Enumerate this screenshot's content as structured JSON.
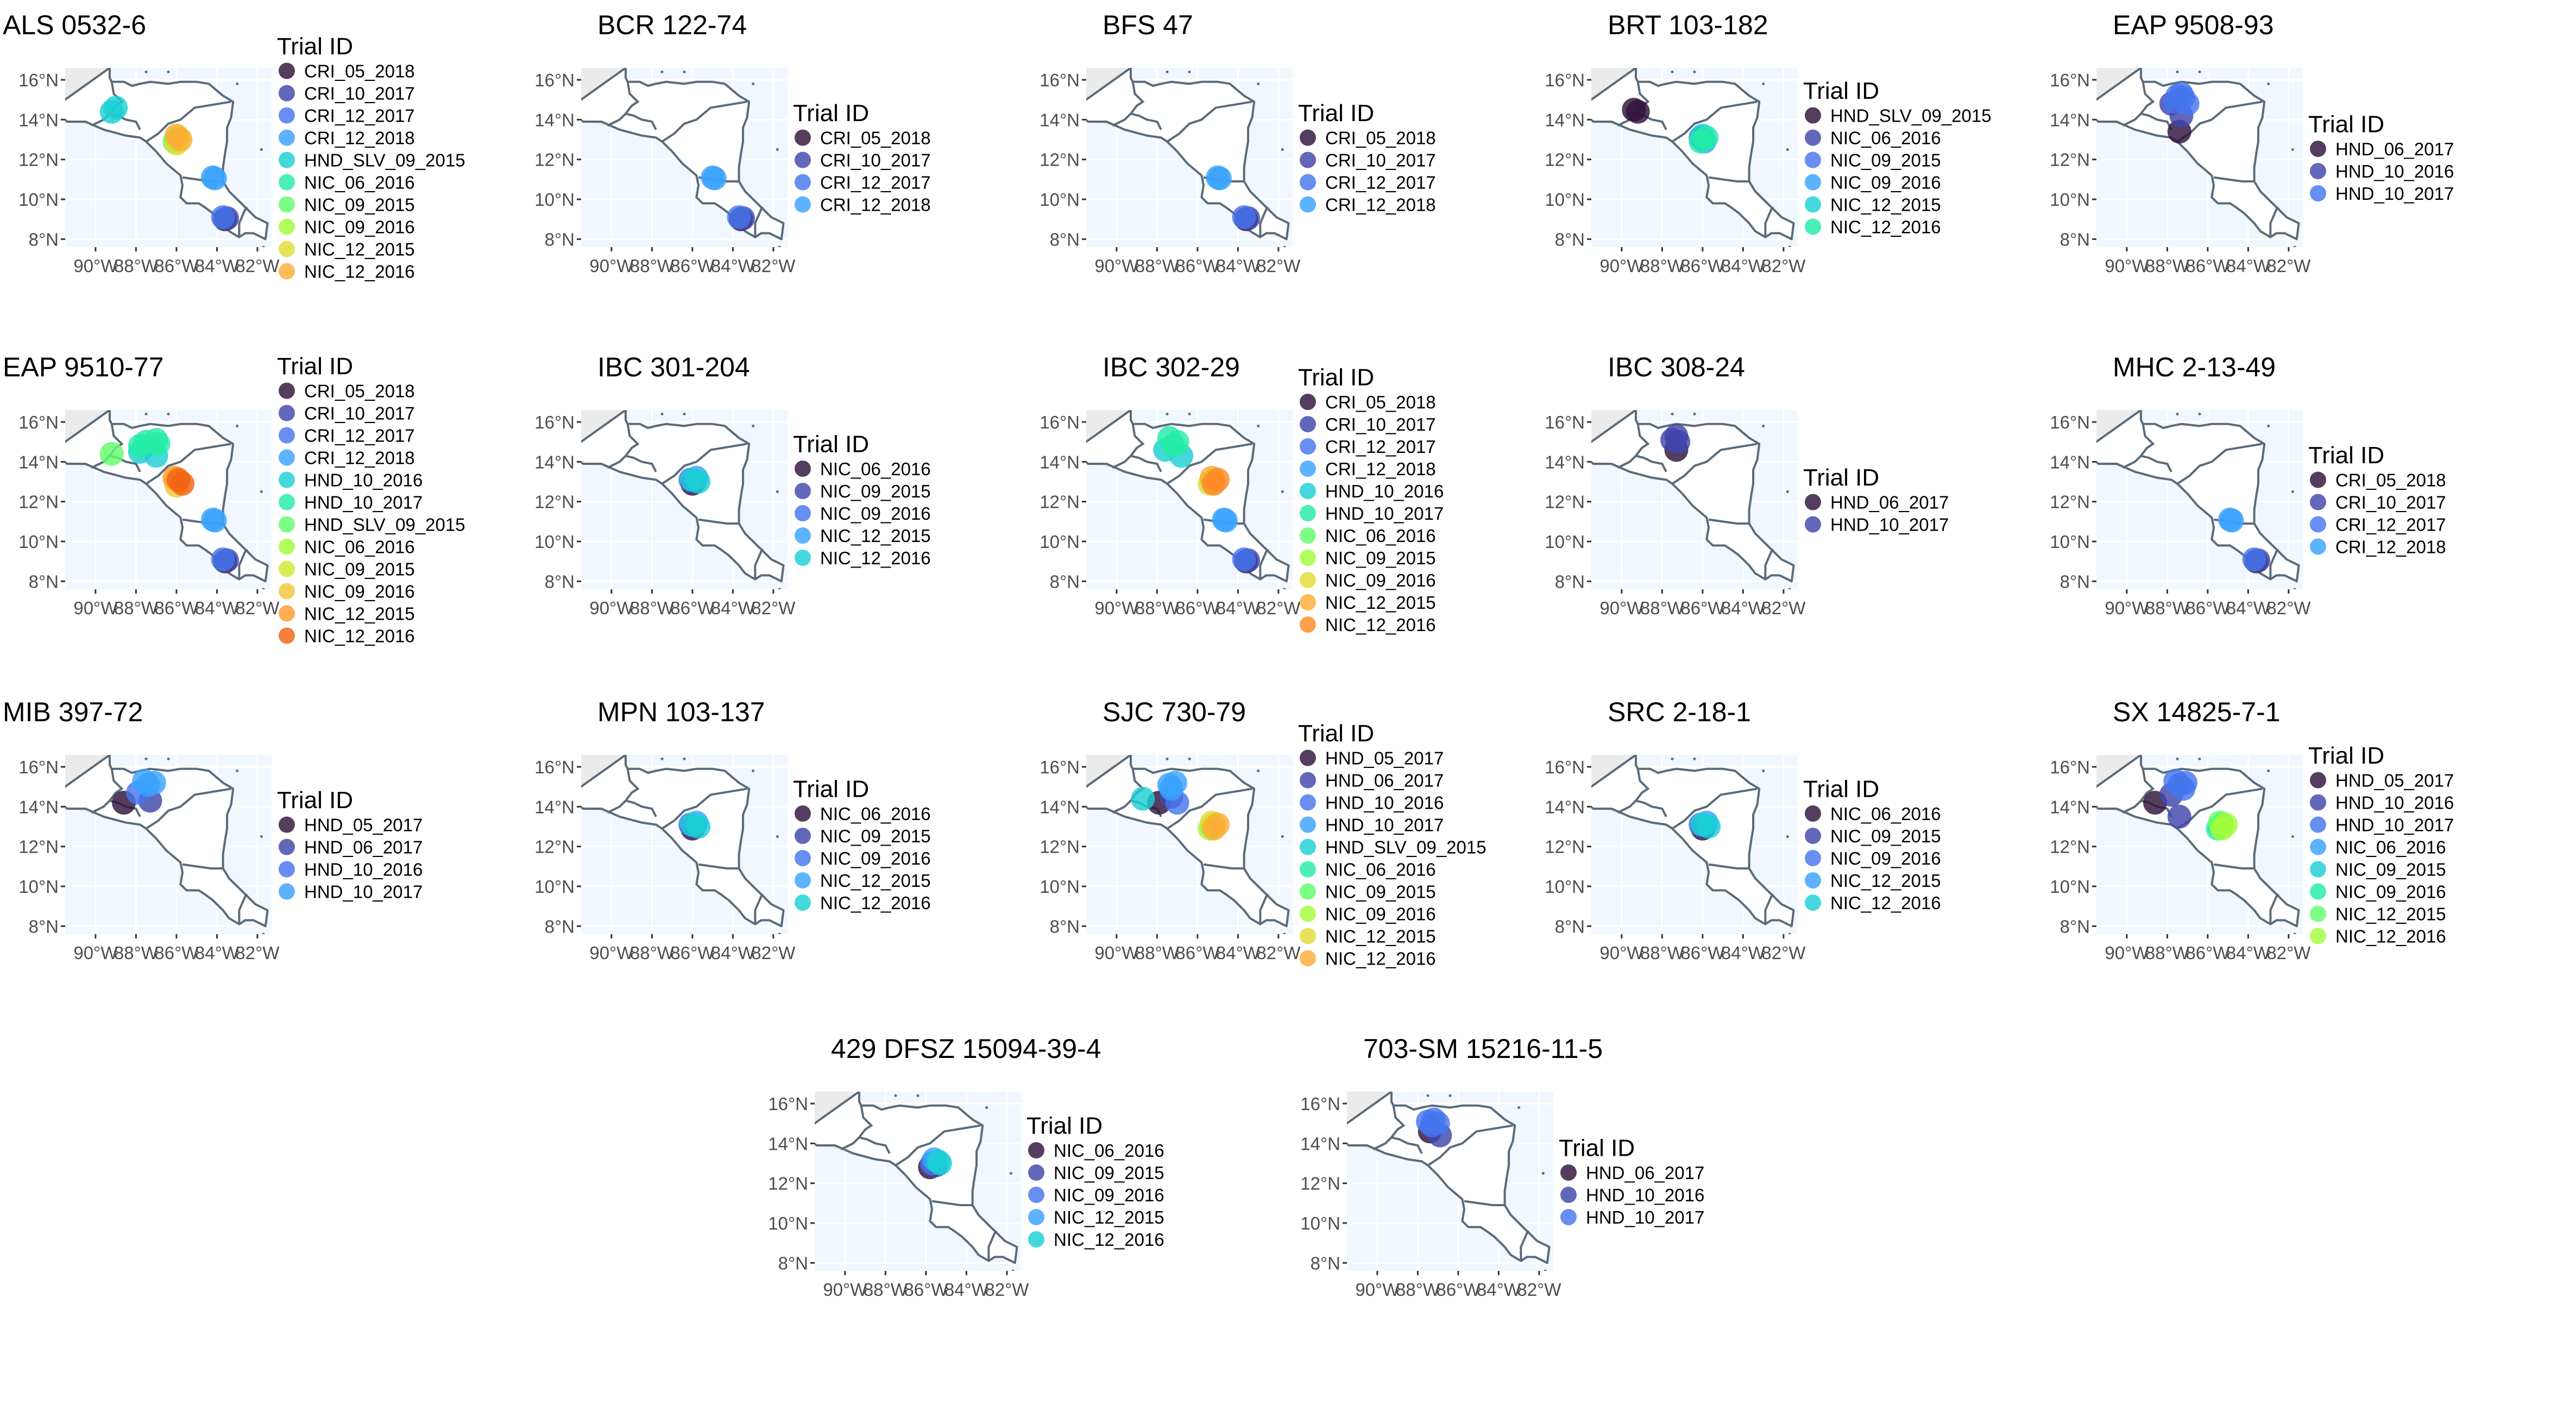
{
  "legend_title": "Trial ID",
  "axes": {
    "x_ticks": [
      "90°W",
      "88°W",
      "86°W",
      "84°W",
      "82°W"
    ],
    "y_ticks": [
      "16°N",
      "14°N",
      "12°N",
      "10°N",
      "8°N"
    ],
    "xlim": [
      -91.5,
      -81.3
    ],
    "ylim": [
      7.6,
      16.6
    ]
  },
  "colors": {
    "CRI_05_2018": "#30123b",
    "CRI_10_2017": "#4145ab",
    "CRI_12_2017": "#4675ed",
    "CRI_12_2018": "#39a2fc",
    "HND_05_2017": "#30123b",
    "HND_06_2017": "#4145ab",
    "HND_10_2016": "#4675ed",
    "HND_10_2017": "#39a2fc",
    "HND_SLV_09_2015": "#1bcfd4",
    "NIC_06_2016": "#24eca6",
    "NIC_09_2015": "#61fc6c",
    "NIC_09_2016": "#a4fc3b",
    "NIC_12_2015": "#d1e834",
    "NIC_12_2016": "#f3c63a"
  },
  "chart_data": [
    {
      "type": "scatter",
      "title": "ALS 0532-6",
      "legend": [
        "CRI_05_2018",
        "CRI_10_2017",
        "CRI_12_2017",
        "CRI_12_2018",
        "HND_SLV_09_2015",
        "NIC_06_2016",
        "NIC_09_2015",
        "NIC_09_2016",
        "NIC_12_2015",
        "NIC_12_2016"
      ],
      "colors": [
        "#30123b",
        "#4145ab",
        "#4675ed",
        "#39a2fc",
        "#1bcfd4",
        "#24eca6",
        "#61fc6c",
        "#a4fc3b",
        "#e1dd37",
        "#fdad35"
      ],
      "points": [
        {
          "s": 0,
          "lon": -83.6,
          "lat": 9.0
        },
        {
          "s": 1,
          "lon": -83.5,
          "lat": 9.05
        },
        {
          "s": 2,
          "lon": -83.7,
          "lat": 9.1
        },
        {
          "s": 3,
          "lon": -84.2,
          "lat": 11.1
        },
        {
          "s": 3,
          "lon": -84.1,
          "lat": 11.05
        },
        {
          "s": 4,
          "lon": -89.2,
          "lat": 14.4
        },
        {
          "s": 4,
          "lon": -89.0,
          "lat": 14.6
        },
        {
          "s": 5,
          "lon": -86.0,
          "lat": 13.0
        },
        {
          "s": 6,
          "lon": -86.1,
          "lat": 12.9
        },
        {
          "s": 7,
          "lon": -85.9,
          "lat": 13.1
        },
        {
          "s": 8,
          "lon": -86.0,
          "lat": 12.8
        },
        {
          "s": 9,
          "lon": -86.0,
          "lat": 13.2
        },
        {
          "s": 9,
          "lon": -85.8,
          "lat": 13.0
        }
      ]
    },
    {
      "type": "scatter",
      "title": "BCR 122-74",
      "legend": [
        "CRI_05_2018",
        "CRI_10_2017",
        "CRI_12_2017",
        "CRI_12_2018"
      ],
      "colors": [
        "#30123b",
        "#4145ab",
        "#4675ed",
        "#39a2fc"
      ],
      "points": [
        {
          "s": 0,
          "lon": -83.6,
          "lat": 9.0
        },
        {
          "s": 1,
          "lon": -83.5,
          "lat": 9.05
        },
        {
          "s": 2,
          "lon": -83.7,
          "lat": 9.1
        },
        {
          "s": 3,
          "lon": -85.0,
          "lat": 11.1
        },
        {
          "s": 3,
          "lon": -84.9,
          "lat": 11.05
        }
      ]
    },
    {
      "type": "scatter",
      "title": "BFS 47",
      "legend": [
        "CRI_05_2018",
        "CRI_10_2017",
        "CRI_12_2017",
        "CRI_12_2018"
      ],
      "colors": [
        "#30123b",
        "#4145ab",
        "#4675ed",
        "#39a2fc"
      ],
      "points": [
        {
          "s": 0,
          "lon": -83.6,
          "lat": 9.0
        },
        {
          "s": 1,
          "lon": -83.5,
          "lat": 9.05
        },
        {
          "s": 2,
          "lon": -83.7,
          "lat": 9.1
        },
        {
          "s": 3,
          "lon": -85.0,
          "lat": 11.1
        },
        {
          "s": 3,
          "lon": -84.9,
          "lat": 11.05
        }
      ]
    },
    {
      "type": "scatter",
      "title": "BRT 103-182",
      "legend": [
        "HND_SLV_09_2015",
        "NIC_06_2016",
        "NIC_09_2015",
        "NIC_09_2016",
        "NIC_12_2015",
        "NIC_12_2016"
      ],
      "colors": [
        "#30123b",
        "#4145ab",
        "#4675ed",
        "#39a2fc",
        "#1bcfd4",
        "#24eca6"
      ],
      "points": [
        {
          "s": 0,
          "lon": -89.4,
          "lat": 14.5
        },
        {
          "s": 0,
          "lon": -89.2,
          "lat": 14.4
        },
        {
          "s": 1,
          "lon": -86.0,
          "lat": 13.0
        },
        {
          "s": 2,
          "lon": -86.1,
          "lat": 13.1
        },
        {
          "s": 3,
          "lon": -85.9,
          "lat": 12.9
        },
        {
          "s": 4,
          "lon": -86.0,
          "lat": 13.2
        },
        {
          "s": 5,
          "lon": -86.1,
          "lat": 12.9
        },
        {
          "s": 5,
          "lon": -85.8,
          "lat": 13.1
        }
      ]
    },
    {
      "type": "scatter",
      "title": "EAP 9508-93",
      "legend": [
        "HND_06_2017",
        "HND_10_2016",
        "HND_10_2017"
      ],
      "colors": [
        "#30123b",
        "#4145ab",
        "#4675ed"
      ],
      "points": [
        {
          "s": 0,
          "lon": -87.4,
          "lat": 13.4
        },
        {
          "s": 1,
          "lon": -87.8,
          "lat": 14.8
        },
        {
          "s": 1,
          "lon": -87.3,
          "lat": 14.2
        },
        {
          "s": 2,
          "lon": -87.5,
          "lat": 15.2
        },
        {
          "s": 2,
          "lon": -87.2,
          "lat": 15.1
        },
        {
          "s": 2,
          "lon": -87.6,
          "lat": 14.9
        },
        {
          "s": 2,
          "lon": -87.0,
          "lat": 14.8
        },
        {
          "s": 2,
          "lon": -87.3,
          "lat": 15.3
        }
      ]
    },
    {
      "type": "scatter",
      "title": "EAP 9510-77",
      "legend": [
        "CRI_05_2018",
        "CRI_10_2017",
        "CRI_12_2017",
        "CRI_12_2018",
        "HND_10_2016",
        "HND_10_2017",
        "HND_SLV_09_2015",
        "NIC_06_2016",
        "NIC_09_2015",
        "NIC_09_2016",
        "NIC_12_2015",
        "NIC_12_2016"
      ],
      "colors": [
        "#30123b",
        "#4145ab",
        "#4675ed",
        "#39a2fc",
        "#1bcfd4",
        "#24eca6",
        "#61fc6c",
        "#a4fc3b",
        "#d1e834",
        "#f3c63a",
        "#fe9b2d",
        "#f36315"
      ],
      "points": [
        {
          "s": 0,
          "lon": -83.6,
          "lat": 9.0
        },
        {
          "s": 1,
          "lon": -83.5,
          "lat": 9.05
        },
        {
          "s": 2,
          "lon": -83.7,
          "lat": 9.1
        },
        {
          "s": 3,
          "lon": -84.2,
          "lat": 11.1
        },
        {
          "s": 3,
          "lon": -84.1,
          "lat": 11.05
        },
        {
          "s": 4,
          "lon": -87.8,
          "lat": 14.5
        },
        {
          "s": 4,
          "lon": -87.0,
          "lat": 14.3
        },
        {
          "s": 5,
          "lon": -87.5,
          "lat": 15.0
        },
        {
          "s": 5,
          "lon": -87.0,
          "lat": 15.1
        },
        {
          "s": 5,
          "lon": -87.8,
          "lat": 14.8
        },
        {
          "s": 5,
          "lon": -86.9,
          "lat": 14.9
        },
        {
          "s": 6,
          "lon": -89.2,
          "lat": 14.4
        },
        {
          "s": 7,
          "lon": -86.0,
          "lat": 13.1
        },
        {
          "s": 8,
          "lon": -85.9,
          "lat": 13.0
        },
        {
          "s": 9,
          "lon": -86.0,
          "lat": 12.8
        },
        {
          "s": 10,
          "lon": -86.1,
          "lat": 13.2
        },
        {
          "s": 11,
          "lon": -85.9,
          "lat": 13.1
        },
        {
          "s": 11,
          "lon": -85.7,
          "lat": 12.9
        }
      ]
    },
    {
      "type": "scatter",
      "title": "IBC 301-204",
      "legend": [
        "NIC_06_2016",
        "NIC_09_2015",
        "NIC_09_2016",
        "NIC_12_2015",
        "NIC_12_2016"
      ],
      "colors": [
        "#30123b",
        "#4145ab",
        "#4675ed",
        "#39a2fc",
        "#1bcfd4"
      ],
      "points": [
        {
          "s": 0,
          "lon": -86.0,
          "lat": 12.9
        },
        {
          "s": 1,
          "lon": -85.9,
          "lat": 13.0
        },
        {
          "s": 2,
          "lon": -86.1,
          "lat": 13.1
        },
        {
          "s": 3,
          "lon": -85.8,
          "lat": 13.2
        },
        {
          "s": 4,
          "lon": -86.0,
          "lat": 13.1
        },
        {
          "s": 4,
          "lon": -85.7,
          "lat": 13.0
        }
      ]
    },
    {
      "type": "scatter",
      "title": "IBC 302-29",
      "legend": [
        "CRI_05_2018",
        "CRI_10_2017",
        "CRI_12_2017",
        "CRI_12_2018",
        "HND_10_2016",
        "HND_10_2017",
        "NIC_06_2016",
        "NIC_09_2015",
        "NIC_09_2016",
        "NIC_12_2015",
        "NIC_12_2016"
      ],
      "colors": [
        "#30123b",
        "#4145ab",
        "#4675ed",
        "#39a2fc",
        "#1bcfd4",
        "#24eca6",
        "#61fc6c",
        "#a4fc3b",
        "#e1dd37",
        "#fdad35",
        "#fe8a27"
      ],
      "points": [
        {
          "s": 0,
          "lon": -83.6,
          "lat": 9.0
        },
        {
          "s": 1,
          "lon": -83.5,
          "lat": 9.05
        },
        {
          "s": 2,
          "lon": -83.7,
          "lat": 9.1
        },
        {
          "s": 3,
          "lon": -84.7,
          "lat": 11.1
        },
        {
          "s": 3,
          "lon": -84.6,
          "lat": 11.05
        },
        {
          "s": 4,
          "lon": -87.6,
          "lat": 14.6
        },
        {
          "s": 4,
          "lon": -86.8,
          "lat": 14.3
        },
        {
          "s": 5,
          "lon": -87.4,
          "lat": 15.2
        },
        {
          "s": 5,
          "lon": -87.0,
          "lat": 15.0
        },
        {
          "s": 5,
          "lon": -87.2,
          "lat": 14.8
        },
        {
          "s": 6,
          "lon": -85.3,
          "lat": 13.0
        },
        {
          "s": 7,
          "lon": -85.2,
          "lat": 13.1
        },
        {
          "s": 8,
          "lon": -85.4,
          "lat": 12.9
        },
        {
          "s": 9,
          "lon": -85.3,
          "lat": 13.2
        },
        {
          "s": 10,
          "lon": -85.2,
          "lat": 12.9
        },
        {
          "s": 10,
          "lon": -85.0,
          "lat": 13.1
        }
      ]
    },
    {
      "type": "scatter",
      "title": "IBC 308-24",
      "legend": [
        "HND_06_2017",
        "HND_10_2017"
      ],
      "colors": [
        "#30123b",
        "#4145ab"
      ],
      "points": [
        {
          "s": 0,
          "lon": -87.3,
          "lat": 14.6
        },
        {
          "s": 1,
          "lon": -87.5,
          "lat": 15.1
        },
        {
          "s": 1,
          "lon": -87.2,
          "lat": 15.0
        },
        {
          "s": 1,
          "lon": -87.3,
          "lat": 15.3
        }
      ]
    },
    {
      "type": "scatter",
      "title": "MHC 2-13-49",
      "legend": [
        "CRI_05_2018",
        "CRI_10_2017",
        "CRI_12_2017",
        "CRI_12_2018"
      ],
      "colors": [
        "#30123b",
        "#4145ab",
        "#4675ed",
        "#39a2fc"
      ],
      "points": [
        {
          "s": 0,
          "lon": -83.6,
          "lat": 9.0
        },
        {
          "s": 1,
          "lon": -83.5,
          "lat": 9.05
        },
        {
          "s": 2,
          "lon": -83.7,
          "lat": 9.1
        },
        {
          "s": 3,
          "lon": -84.9,
          "lat": 11.1
        },
        {
          "s": 3,
          "lon": -84.8,
          "lat": 11.05
        }
      ]
    },
    {
      "type": "scatter",
      "title": "MIB 397-72",
      "legend": [
        "HND_05_2017",
        "HND_06_2017",
        "HND_10_2016",
        "HND_10_2017"
      ],
      "colors": [
        "#30123b",
        "#4145ab",
        "#4675ed",
        "#39a2fc"
      ],
      "points": [
        {
          "s": 0,
          "lon": -88.6,
          "lat": 14.2
        },
        {
          "s": 1,
          "lon": -87.3,
          "lat": 14.3
        },
        {
          "s": 2,
          "lon": -87.9,
          "lat": 14.7
        },
        {
          "s": 3,
          "lon": -87.4,
          "lat": 15.1
        },
        {
          "s": 3,
          "lon": -87.1,
          "lat": 15.2
        },
        {
          "s": 3,
          "lon": -87.6,
          "lat": 15.3
        }
      ]
    },
    {
      "type": "scatter",
      "title": "MPN 103-137",
      "legend": [
        "NIC_06_2016",
        "NIC_09_2015",
        "NIC_09_2016",
        "NIC_12_2015",
        "NIC_12_2016"
      ],
      "colors": [
        "#30123b",
        "#4145ab",
        "#4675ed",
        "#39a2fc",
        "#1bcfd4"
      ],
      "points": [
        {
          "s": 0,
          "lon": -86.0,
          "lat": 12.9
        },
        {
          "s": 1,
          "lon": -85.9,
          "lat": 13.0
        },
        {
          "s": 2,
          "lon": -86.1,
          "lat": 13.1
        },
        {
          "s": 3,
          "lon": -85.8,
          "lat": 13.2
        },
        {
          "s": 4,
          "lon": -86.0,
          "lat": 13.1
        },
        {
          "s": 4,
          "lon": -85.7,
          "lat": 13.0
        }
      ]
    },
    {
      "type": "scatter",
      "title": "SJC 730-79",
      "legend": [
        "HND_05_2017",
        "HND_06_2017",
        "HND_10_2016",
        "HND_10_2017",
        "HND_SLV_09_2015",
        "NIC_06_2016",
        "NIC_09_2015",
        "NIC_09_2016",
        "NIC_12_2015",
        "NIC_12_2016"
      ],
      "colors": [
        "#30123b",
        "#4145ab",
        "#4675ed",
        "#39a2fc",
        "#1bcfd4",
        "#24eca6",
        "#61fc6c",
        "#a4fc3b",
        "#e1dd37",
        "#fdad35"
      ],
      "points": [
        {
          "s": 0,
          "lon": -87.9,
          "lat": 14.2
        },
        {
          "s": 1,
          "lon": -87.3,
          "lat": 14.5
        },
        {
          "s": 2,
          "lon": -87.0,
          "lat": 14.2
        },
        {
          "s": 3,
          "lon": -87.4,
          "lat": 15.1
        },
        {
          "s": 3,
          "lon": -87.1,
          "lat": 15.2
        },
        {
          "s": 3,
          "lon": -87.3,
          "lat": 14.9
        },
        {
          "s": 4,
          "lon": -88.7,
          "lat": 14.4
        },
        {
          "s": 5,
          "lon": -85.3,
          "lat": 13.0
        },
        {
          "s": 6,
          "lon": -85.2,
          "lat": 13.1
        },
        {
          "s": 7,
          "lon": -85.4,
          "lat": 12.9
        },
        {
          "s": 8,
          "lon": -85.3,
          "lat": 13.2
        },
        {
          "s": 9,
          "lon": -85.2,
          "lat": 12.9
        },
        {
          "s": 9,
          "lon": -85.0,
          "lat": 13.1
        }
      ]
    },
    {
      "type": "scatter",
      "title": "SRC 2-18-1",
      "legend": [
        "NIC_06_2016",
        "NIC_09_2015",
        "NIC_09_2016",
        "NIC_12_2015",
        "NIC_12_2016"
      ],
      "colors": [
        "#30123b",
        "#4145ab",
        "#4675ed",
        "#39a2fc",
        "#1bcfd4"
      ],
      "points": [
        {
          "s": 0,
          "lon": -86.0,
          "lat": 12.9
        },
        {
          "s": 1,
          "lon": -85.9,
          "lat": 13.0
        },
        {
          "s": 2,
          "lon": -86.1,
          "lat": 13.1
        },
        {
          "s": 3,
          "lon": -85.8,
          "lat": 13.2
        },
        {
          "s": 4,
          "lon": -86.0,
          "lat": 13.1
        },
        {
          "s": 4,
          "lon": -85.7,
          "lat": 13.0
        }
      ]
    },
    {
      "type": "scatter",
      "title": "SX 14825-7-1",
      "legend": [
        "HND_05_2017",
        "HND_10_2016",
        "HND_10_2017",
        "NIC_06_2016",
        "NIC_09_2015",
        "NIC_09_2016",
        "NIC_12_2015",
        "NIC_12_2016"
      ],
      "colors": [
        "#30123b",
        "#4145ab",
        "#4675ed",
        "#39a2fc",
        "#1bcfd4",
        "#24eca6",
        "#61fc6c",
        "#a4fc3b"
      ],
      "points": [
        {
          "s": 0,
          "lon": -88.6,
          "lat": 14.2
        },
        {
          "s": 1,
          "lon": -87.4,
          "lat": 13.5
        },
        {
          "s": 1,
          "lon": -87.8,
          "lat": 14.6
        },
        {
          "s": 2,
          "lon": -87.4,
          "lat": 15.1
        },
        {
          "s": 2,
          "lon": -87.1,
          "lat": 15.2
        },
        {
          "s": 2,
          "lon": -87.6,
          "lat": 15.3
        },
        {
          "s": 2,
          "lon": -87.2,
          "lat": 14.9
        },
        {
          "s": 3,
          "lon": -85.4,
          "lat": 13.0
        },
        {
          "s": 4,
          "lon": -85.3,
          "lat": 13.1
        },
        {
          "s": 5,
          "lon": -85.5,
          "lat": 12.9
        },
        {
          "s": 6,
          "lon": -85.4,
          "lat": 13.2
        },
        {
          "s": 7,
          "lon": -85.3,
          "lat": 12.9
        },
        {
          "s": 7,
          "lon": -85.1,
          "lat": 13.1
        }
      ]
    },
    {
      "type": "scatter",
      "title": "429 DFSZ 15094-39-4",
      "legend": [
        "NIC_06_2016",
        "NIC_09_2015",
        "NIC_09_2016",
        "NIC_12_2015",
        "NIC_12_2016"
      ],
      "colors": [
        "#30123b",
        "#4145ab",
        "#4675ed",
        "#39a2fc",
        "#1bcfd4"
      ],
      "points": [
        {
          "s": 0,
          "lon": -85.8,
          "lat": 12.8
        },
        {
          "s": 1,
          "lon": -85.5,
          "lat": 12.9
        },
        {
          "s": 2,
          "lon": -85.7,
          "lat": 13.0
        },
        {
          "s": 3,
          "lon": -85.6,
          "lat": 13.2
        },
        {
          "s": 4,
          "lon": -85.4,
          "lat": 13.1
        },
        {
          "s": 4,
          "lon": -85.3,
          "lat": 13.0
        }
      ]
    },
    {
      "type": "scatter",
      "title": "703-SM 15216-11-5",
      "legend": [
        "HND_06_2017",
        "HND_10_2016",
        "HND_10_2017"
      ],
      "colors": [
        "#30123b",
        "#4145ab",
        "#4675ed"
      ],
      "points": [
        {
          "s": 0,
          "lon": -87.4,
          "lat": 14.6
        },
        {
          "s": 1,
          "lon": -86.9,
          "lat": 14.4
        },
        {
          "s": 2,
          "lon": -87.5,
          "lat": 15.1
        },
        {
          "s": 2,
          "lon": -87.2,
          "lat": 15.2
        },
        {
          "s": 2,
          "lon": -87.0,
          "lat": 15.0
        },
        {
          "s": 2,
          "lon": -87.3,
          "lat": 14.9
        }
      ]
    }
  ]
}
